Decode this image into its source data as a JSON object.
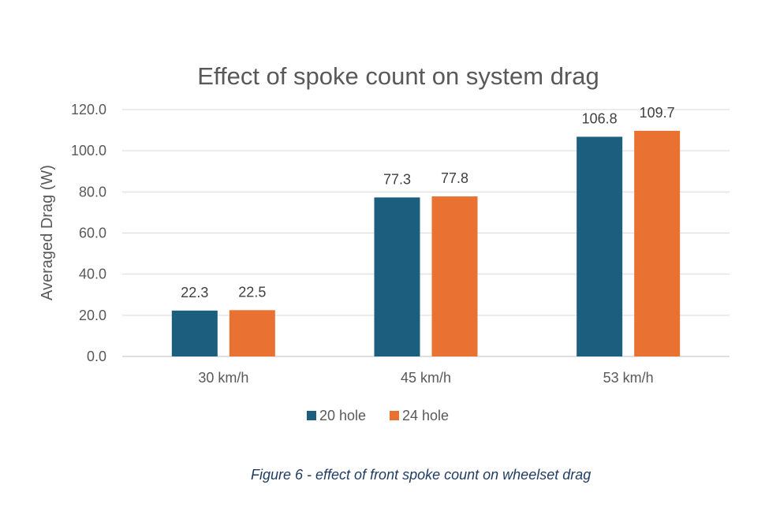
{
  "chart_data": {
    "type": "bar",
    "title": "Effect of spoke count on system drag",
    "xlabel": "",
    "ylabel": "Averaged Drag (W)",
    "categories": [
      "30 km/h",
      "45 km/h",
      "53 km/h"
    ],
    "series": [
      {
        "name": "20 hole",
        "values": [
          22.3,
          77.3,
          106.8
        ],
        "color": "#1b5e7e"
      },
      {
        "name": "24 hole",
        "values": [
          22.5,
          77.8,
          109.7
        ],
        "color": "#e97132"
      }
    ],
    "ylim": [
      0,
      120
    ],
    "yticks": [
      "0.0",
      "20.0",
      "40.0",
      "60.0",
      "80.0",
      "100.0",
      "120.0"
    ],
    "data_labels": true,
    "grid": true,
    "legend_position": "bottom"
  },
  "caption": "Figure 6 - effect of front spoke count on wheelset drag"
}
